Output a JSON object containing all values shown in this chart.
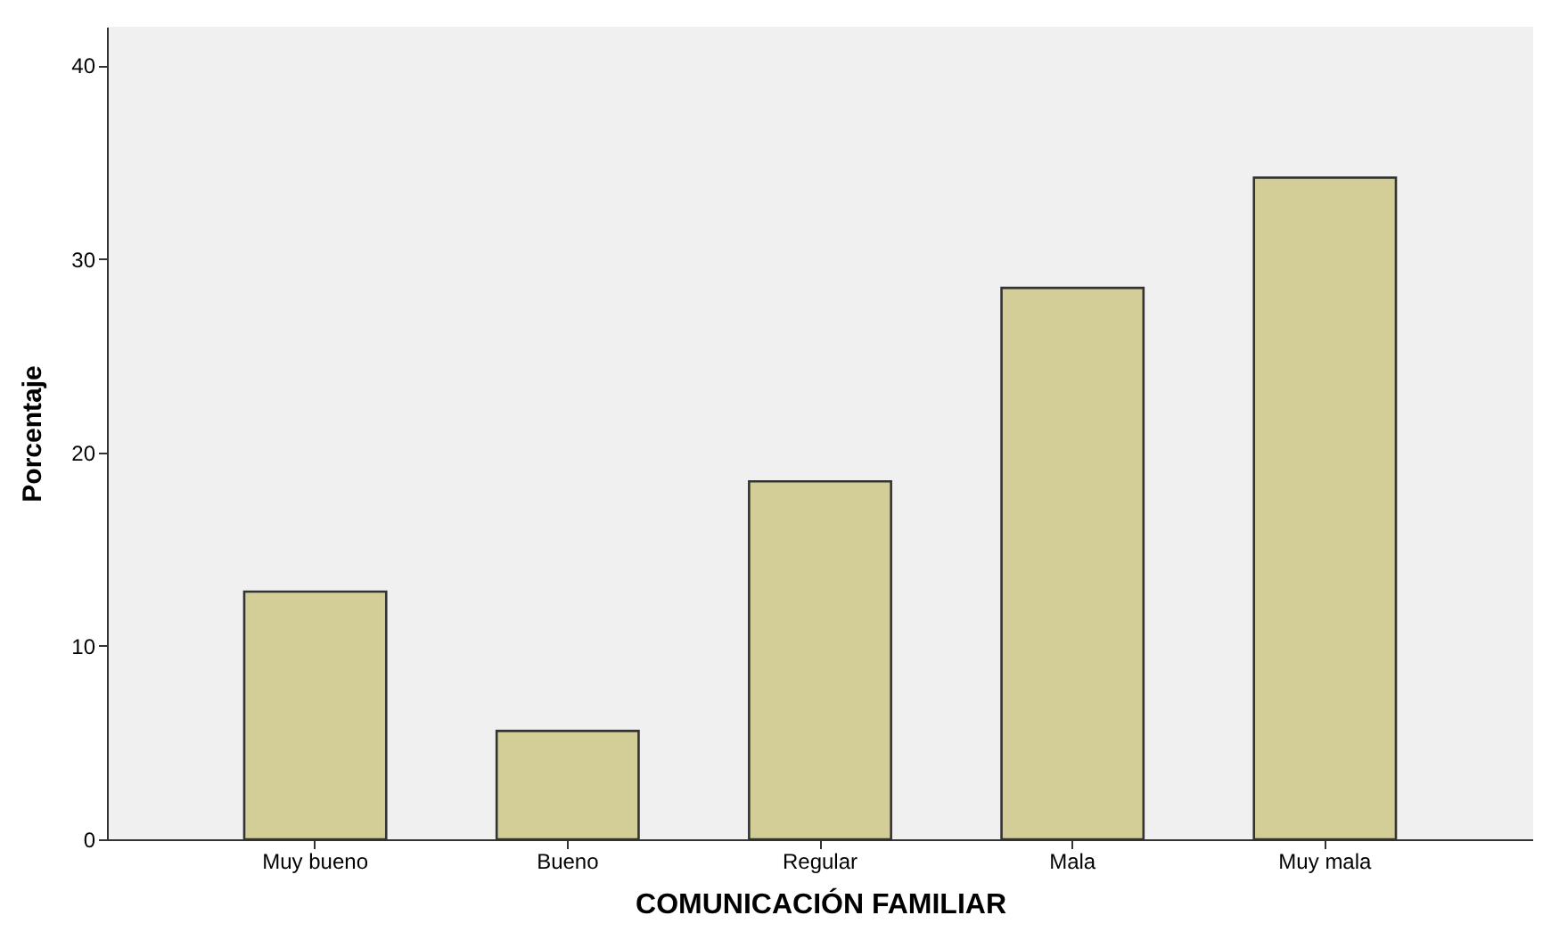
{
  "chart_data": {
    "type": "bar",
    "xlabel": "COMUNICACIÓN FAMILIAR",
    "ylabel": "Porcentaje",
    "categories": [
      "Muy bueno",
      "Bueno",
      "Regular",
      "Mala",
      "Muy mala"
    ],
    "values": [
      12.8,
      5.6,
      18.5,
      28.5,
      34.2
    ],
    "color": "#d3ce97",
    "ylim": [
      0,
      42
    ],
    "yticks": [
      0,
      10,
      20,
      30,
      40
    ],
    "grid": false
  }
}
